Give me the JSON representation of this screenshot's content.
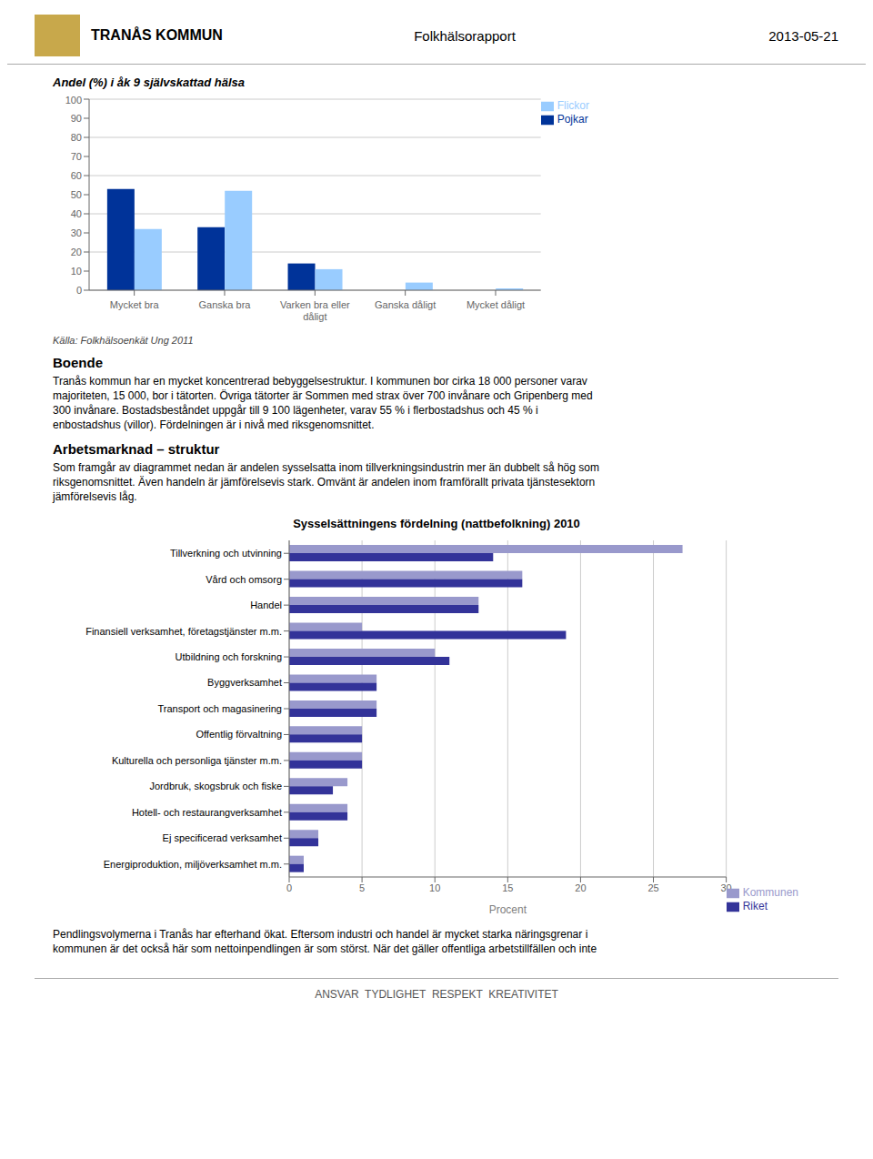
{
  "header": {
    "org_name": "TRANÅS KOMMUN",
    "page_title": "Folkhälsorapport",
    "page_date": "2013-05-21"
  },
  "chart_data": [
    {
      "type": "bar",
      "title": "Andel (%) i åk 9 självskattad hälsa",
      "categories": [
        "Mycket bra",
        "Ganska bra",
        "Varken bra eller\ndåligt",
        "Ganska dåligt",
        "Mycket dåligt"
      ],
      "series": [
        {
          "name": "Pojkar",
          "color": "#003399",
          "values": [
            53,
            33,
            14,
            0,
            0
          ]
        },
        {
          "name": "Flickor",
          "color": "#99CCFF",
          "values": [
            32,
            52,
            11,
            4,
            1
          ]
        }
      ],
      "ylim": [
        0,
        100
      ],
      "yticks": [
        0,
        10,
        20,
        30,
        40,
        50,
        60,
        70,
        80,
        90,
        100
      ],
      "grid": true,
      "legend": "upper right",
      "annotations": [
        "Källa: Folkhälsoenkät Ung 2011"
      ]
    },
    {
      "type": "bar",
      "orientation": "horizontal",
      "title": "Sysselsättningens fördelning (nattbefolkning) 2010",
      "categories": [
        "Tillverkning och utvinning",
        "Vård och omsorg",
        "Handel",
        "Finansiell verksamhet, företagstjänster m.m.",
        "Utbildning och forskning",
        "Byggverksamhet",
        "Transport och magasinering",
        "Offentlig förvaltning",
        "Kulturella och personliga tjänster m.m.",
        "Jordbruk, skogsbruk och fiske",
        "Hotell- och restaurangverksamhet",
        "Ej specificerad verksamhet",
        "Energiproduktion, miljöverksamhet m.m."
      ],
      "series": [
        {
          "name": "Kommunen",
          "color": "#9999CC",
          "values": [
            27,
            16,
            13,
            5,
            10,
            6,
            6,
            5,
            5,
            4,
            4,
            2,
            1
          ]
        },
        {
          "name": "Riket",
          "color": "#333399",
          "values": [
            14,
            16,
            13,
            19,
            11,
            6,
            6,
            5,
            5,
            3,
            4,
            2,
            1
          ]
        }
      ],
      "xlim": [
        0,
        30
      ],
      "xticks": [
        0,
        5,
        10,
        15,
        20,
        25,
        30
      ],
      "x_label": "Procent",
      "grid": true,
      "legend": "lower right"
    }
  ],
  "sections": [
    {
      "title": "Boende",
      "lines": [
        "Tranås kommun har en mycket koncentrerad bebyggelsestruktur. I kommunen bor cirka 18 000 personer varav",
        "majoriteten, 15 000, bor i tätorten. Övriga tätorter är Sommen med strax över 700 invånare och Gripenberg med",
        "300 invånare. Bostadsbeståndet uppgår till 9 100 lägenheter, varav 55 % i flerbostadshus och 45 % i",
        "enbostadshus (villor). Fördelningen är i nivå med riksgenomsnittet."
      ]
    },
    {
      "title": "Arbetsmarknad – struktur",
      "lines": [
        "Som framgår av diagrammet nedan är andelen sysselsatta inom tillverkningsindustrin mer än dubbelt så hög som",
        "riksgenomsnittet. Även handeln är jämförelsevis stark. Omvänt är andelen inom framförallt privata tjänstesektorn",
        "jämförelsevis låg."
      ]
    }
  ],
  "bottom_lines": [
    "Pendlingsvolymerna i Tranås har efterhand ökat. Eftersom industri och handel är mycket starka näringsgrenar i",
    "kommunen är det också här som nettoinpendlingen är som störst. När det gäller offentliga arbetstillfällen och inte"
  ],
  "footer_text": "ANSVAR  TYDLIGHET  RESPEKT  KREATIVITET"
}
